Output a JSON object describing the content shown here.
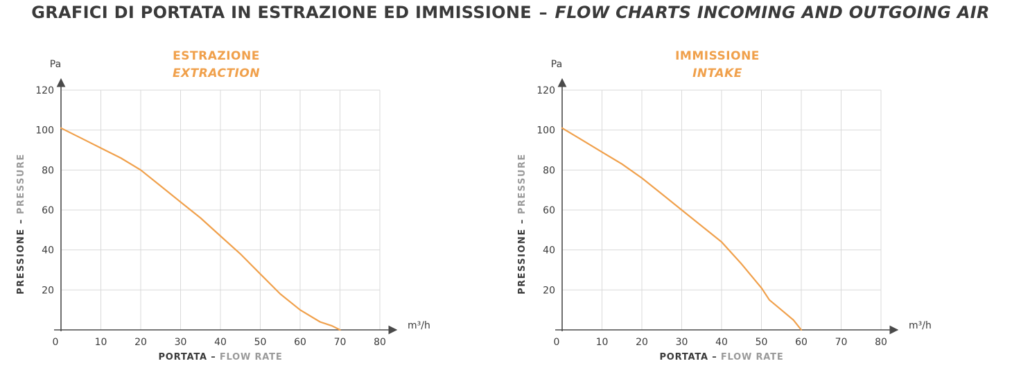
{
  "page_title": {
    "italian": "GRAFICI DI PORTATA IN ESTRAZIONE ED IMMISSIONE",
    "separator": "–",
    "english": "FLOW CHARTS INCOMING AND OUTGOING AIR"
  },
  "colors": {
    "curve": "#F0A04B",
    "title_orange": "#F0A04B",
    "axis": "#4a4a4a",
    "grid": "#d9d9d9",
    "label_dark": "#3a3a3a",
    "label_grey": "#9a9a9a"
  },
  "chart_data": [
    {
      "type": "line",
      "title": "ESTRAZIONE",
      "subtitle": "EXTRACTION",
      "ylabel": {
        "primary": "PRESSIONE",
        "separator": "–",
        "secondary": "PRESSURE"
      },
      "xlabel": {
        "primary": "PORTATA",
        "separator": "–",
        "secondary": "FLOW RATE"
      },
      "x_unit": "m³/h",
      "y_unit": "Pa",
      "xlim": [
        0,
        80
      ],
      "ylim": [
        0,
        120
      ],
      "x_ticks": [
        0,
        10,
        20,
        30,
        40,
        50,
        60,
        70,
        80
      ],
      "y_ticks": [
        20,
        40,
        60,
        80,
        100,
        120
      ],
      "grid": true,
      "series": [
        {
          "x": [
            0,
            5,
            10,
            15,
            20,
            25,
            30,
            35,
            40,
            45,
            50,
            55,
            60,
            65,
            68,
            70
          ],
          "y": [
            101,
            96,
            91,
            86,
            80,
            72,
            64,
            56,
            47,
            38,
            28,
            18,
            10,
            4,
            2,
            0
          ]
        }
      ]
    },
    {
      "type": "line",
      "title": "IMMISSIONE",
      "subtitle": "INTAKE",
      "ylabel": {
        "primary": "PRESSIONE",
        "separator": "–",
        "secondary": "PRESSURE"
      },
      "xlabel": {
        "primary": "PORTATA",
        "separator": "–",
        "secondary": "FLOW RATE"
      },
      "x_unit": "m³/h",
      "y_unit": "Pa",
      "xlim": [
        0,
        80
      ],
      "ylim": [
        0,
        120
      ],
      "x_ticks": [
        0,
        10,
        20,
        30,
        40,
        50,
        60,
        70,
        80
      ],
      "y_ticks": [
        20,
        40,
        60,
        80,
        100,
        120
      ],
      "grid": true,
      "series": [
        {
          "x": [
            0,
            5,
            10,
            15,
            20,
            25,
            30,
            35,
            40,
            45,
            50,
            52,
            55,
            58,
            60
          ],
          "y": [
            101,
            95,
            89,
            83,
            76,
            68,
            60,
            52,
            44,
            33,
            21,
            15,
            10,
            5,
            0
          ]
        }
      ]
    }
  ]
}
